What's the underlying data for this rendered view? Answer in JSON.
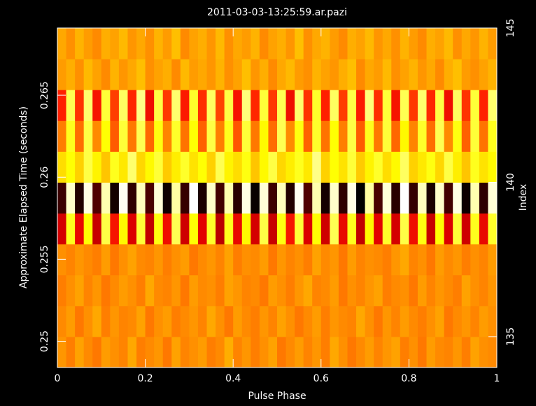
{
  "chart_data": {
    "type": "heatmap",
    "title": "2011-03-03-13:25:59.ar.pazi",
    "x_label": "Pulse Phase",
    "y_label": "Approximate Elapsed Time (seconds)",
    "y2_label": "Index",
    "colormap": "heat",
    "xlim": [
      0,
      1
    ],
    "xticks": [
      0,
      0.2,
      0.4,
      0.6,
      0.8,
      1
    ],
    "ylim": [
      0.2484,
      0.2691
    ],
    "yticks": [
      0.25,
      0.255,
      0.26,
      0.265
    ],
    "y2lim": [
      134,
      145
    ],
    "y2ticks": [
      135,
      140,
      145
    ],
    "y2": [
      134,
      135,
      136,
      137,
      138,
      139,
      140,
      141,
      142,
      143,
      144
    ],
    "z": [
      [
        62,
        58,
        64,
        60,
        57,
        63,
        61,
        59,
        65,
        58,
        60,
        62,
        57,
        64,
        59,
        61,
        63,
        58,
        60,
        66,
        59,
        62,
        58,
        61,
        64,
        57,
        60,
        63,
        59,
        62,
        58,
        65,
        61,
        57,
        60,
        63,
        59,
        62,
        64,
        58,
        61,
        57,
        63,
        60,
        59,
        62,
        58,
        64,
        61,
        60
      ],
      [
        60,
        63,
        57,
        61,
        65,
        58,
        62,
        59,
        60,
        64,
        57,
        61,
        63,
        58,
        60,
        62,
        59,
        65,
        61,
        57,
        63,
        60,
        58,
        62,
        59,
        64,
        61,
        57,
        60,
        63,
        58,
        62,
        60,
        59,
        65,
        61,
        57,
        62,
        59,
        63,
        60,
        58,
        61,
        64,
        57,
        60,
        62,
        59,
        63,
        61
      ],
      [
        58,
        61,
        64,
        59,
        62,
        57,
        60,
        63,
        61,
        58,
        65,
        60,
        59,
        62,
        57,
        63,
        60,
        61,
        58,
        64,
        62,
        59,
        60,
        57,
        63,
        61,
        58,
        62,
        65,
        59,
        60,
        63,
        57,
        61,
        59,
        62,
        64,
        58,
        60,
        61,
        57,
        63,
        59,
        62,
        60,
        58,
        64,
        61,
        59,
        62
      ],
      [
        61,
        59,
        62,
        60,
        58,
        63,
        57,
        61,
        64,
        60,
        59,
        62,
        58,
        61,
        63,
        57,
        60,
        62,
        59,
        64,
        58,
        61,
        60,
        63,
        57,
        62,
        59,
        61,
        58,
        64,
        60,
        62,
        57,
        63,
        59,
        61,
        60,
        58,
        62,
        65,
        59,
        61,
        57,
        63,
        60,
        62,
        58,
        61,
        59,
        63
      ],
      [
        35,
        82,
        38,
        80,
        33,
        85,
        40,
        79,
        36,
        84,
        32,
        81,
        39,
        86,
        34,
        80,
        37,
        83,
        31,
        82,
        38,
        79,
        35,
        85,
        33,
        81,
        40,
        84,
        36,
        80,
        34,
        86,
        38,
        82,
        32,
        79,
        37,
        83,
        35,
        85,
        39,
        81,
        33,
        80,
        36,
        84,
        34,
        82,
        38,
        83
      ],
      [
        12,
        95,
        8,
        97,
        15,
        93,
        6,
        98,
        10,
        94,
        14,
        96,
        5,
        92,
        11,
        99,
        7,
        95,
        13,
        93,
        9,
        97,
        4,
        96,
        12,
        94,
        8,
        98,
        15,
        93,
        6,
        95,
        10,
        97,
        3,
        92,
        14,
        96,
        9,
        99,
        11,
        94,
        7,
        95,
        13,
        97,
        5,
        93,
        10,
        96
      ],
      [
        74,
        80,
        72,
        85,
        78,
        70,
        82,
        76,
        88,
        73,
        79,
        84,
        71,
        77,
        83,
        75,
        80,
        72,
        86,
        78,
        74,
        81,
        70,
        79,
        85,
        73,
        77,
        82,
        76,
        90,
        72,
        80,
        75,
        84,
        71,
        78,
        83,
        74,
        79,
        87,
        72,
        76,
        81,
        73,
        85,
        77,
        70,
        82,
        75,
        79
      ],
      [
        58,
        82,
        55,
        85,
        60,
        80,
        52,
        84,
        57,
        86,
        54,
        81,
        59,
        83,
        56,
        80,
        53,
        85,
        58,
        82,
        51,
        84,
        57,
        79,
        55,
        86,
        60,
        81,
        53,
        83,
        56,
        80,
        58,
        85,
        52,
        82,
        57,
        84,
        54,
        79,
        59,
        83,
        55,
        86,
        60,
        81,
        53,
        84,
        56,
        82
      ],
      [
        42,
        86,
        45,
        88,
        40,
        84,
        47,
        87,
        43,
        90,
        39,
        85,
        46,
        88,
        41,
        83,
        44,
        87,
        48,
        85,
        40,
        89,
        43,
        84,
        46,
        86,
        39,
        88,
        45,
        83,
        42,
        87,
        47,
        85,
        41,
        89,
        44,
        84,
        40,
        86,
        46,
        88,
        43,
        85,
        39,
        87,
        45,
        84,
        42,
        88
      ],
      [
        63,
        66,
        61,
        68,
        64,
        60,
        67,
        62,
        65,
        69,
        61,
        64,
        66,
        60,
        68,
        63,
        65,
        62,
        67,
        61,
        64,
        69,
        62,
        66,
        60,
        65,
        68,
        63,
        61,
        67,
        64,
        62,
        66,
        69,
        60,
        65,
        63,
        68,
        61,
        64,
        67,
        62,
        65,
        60,
        66,
        69,
        63,
        61,
        64,
        67
      ],
      [
        65,
        61,
        67,
        63,
        60,
        66,
        64,
        68,
        62,
        65,
        61,
        67,
        63,
        69,
        60,
        64,
        66,
        62,
        68,
        61,
        65,
        63,
        67,
        60,
        64,
        66,
        62,
        69,
        61,
        65,
        67,
        63,
        60,
        66,
        64,
        68,
        62,
        65,
        61,
        67,
        63,
        60,
        66,
        64,
        68,
        61,
        65,
        62,
        67,
        63
      ]
    ]
  }
}
